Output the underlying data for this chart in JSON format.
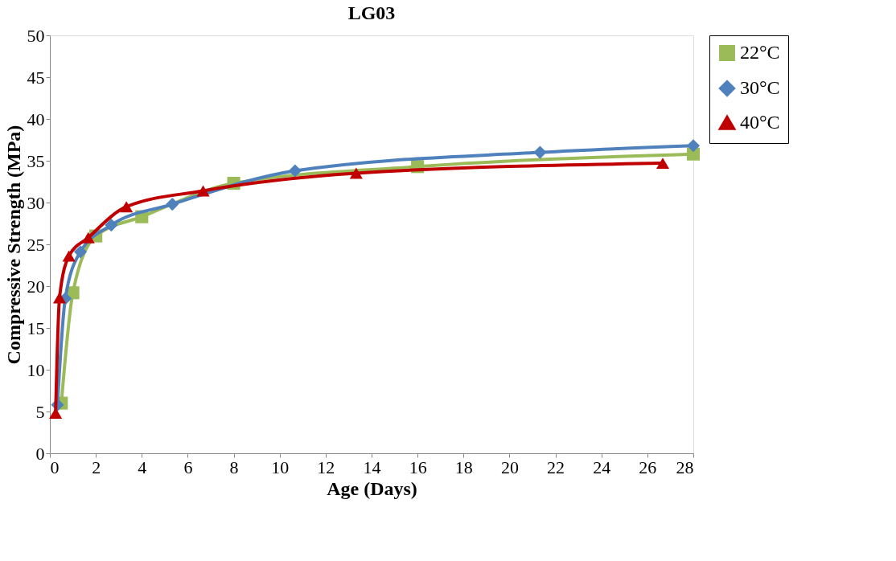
{
  "chart_data": {
    "type": "line",
    "title": "LG03",
    "xlabel": "Age (Days)",
    "ylabel": "Compressive Strength (MPa)",
    "xlim": [
      0,
      28
    ],
    "xticks": [
      0,
      2,
      4,
      6,
      8,
      10,
      12,
      14,
      16,
      18,
      20,
      22,
      24,
      26,
      28
    ],
    "ylim": [
      0,
      50
    ],
    "yticks": [
      0,
      5,
      10,
      15,
      20,
      25,
      30,
      35,
      40,
      45,
      50
    ],
    "grid": false,
    "legend": "right",
    "line_style": "solid",
    "series": [
      {
        "name": "22°C",
        "color": "#9bbb59",
        "marker": "square",
        "x": [
          0.5,
          1,
          2,
          4,
          8,
          16,
          28
        ],
        "values": [
          6,
          19.2,
          26,
          28.3,
          32.3,
          34.3,
          35.8
        ]
      },
      {
        "name": "30°C",
        "color": "#4f81bd",
        "marker": "diamond",
        "x": [
          0.33,
          0.67,
          1.33,
          2.67,
          5.33,
          10.67,
          21.33,
          28
        ],
        "values": [
          5.8,
          18.5,
          24.1,
          27.3,
          29.8,
          33.8,
          36,
          36.8
        ]
      },
      {
        "name": "40°C",
        "color": "#c00000",
        "marker": "triangle",
        "x": [
          0.25,
          0.42,
          0.83,
          1.67,
          3.33,
          6.67,
          13.33,
          26.67
        ],
        "values": [
          4.8,
          18.6,
          23.6,
          25.8,
          29.5,
          31.4,
          33.5,
          34.7
        ]
      }
    ]
  }
}
